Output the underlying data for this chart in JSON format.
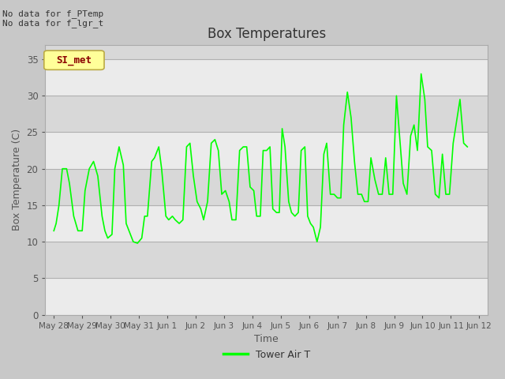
{
  "title": "Box Temperatures",
  "ylabel": "Box Temperature (C)",
  "xlabel": "Time",
  "ylim": [
    0,
    37
  ],
  "line_color": "#00ff00",
  "legend_label": "Tower Air T",
  "no_data_line1": "No data for f_PTemp",
  "no_data_line2": "No data for f_lgr_t",
  "si_met_label": "SI_met",
  "xtick_labels": [
    "May 28",
    "May 29",
    "May 30",
    "May 31",
    "Jun 1",
    "Jun 2",
    "Jun 3",
    "Jun 4",
    "Jun 5",
    "Jun 6",
    "Jun 7",
    "Jun 8",
    "Jun 9",
    "Jun 10",
    "Jun 11",
    "Jun 12"
  ],
  "ytick_vals": [
    0,
    5,
    10,
    15,
    20,
    25,
    30,
    35
  ],
  "x_data": [
    0.0,
    0.08,
    0.18,
    0.3,
    0.45,
    0.55,
    0.7,
    0.85,
    1.0,
    1.1,
    1.25,
    1.4,
    1.55,
    1.7,
    1.8,
    1.9,
    2.05,
    2.15,
    2.3,
    2.45,
    2.55,
    2.7,
    2.8,
    2.95,
    3.1,
    3.2,
    3.3,
    3.45,
    3.55,
    3.7,
    3.8,
    3.95,
    4.05,
    4.18,
    4.28,
    4.42,
    4.55,
    4.68,
    4.8,
    4.92,
    5.05,
    5.18,
    5.28,
    5.42,
    5.55,
    5.68,
    5.8,
    5.92,
    6.05,
    6.18,
    6.28,
    6.42,
    6.55,
    6.68,
    6.8,
    6.92,
    7.05,
    7.15,
    7.28,
    7.38,
    7.5,
    7.62,
    7.72,
    7.85,
    7.95,
    8.05,
    8.15,
    8.28,
    8.38,
    8.5,
    8.62,
    8.72,
    8.85,
    8.95,
    9.05,
    9.15,
    9.28,
    9.4,
    9.52,
    9.62,
    9.75,
    9.88,
    10.0,
    10.12,
    10.22,
    10.35,
    10.48,
    10.6,
    10.72,
    10.85,
    10.95,
    11.08,
    11.18,
    11.32,
    11.45,
    11.58,
    11.7,
    11.82,
    11.95,
    12.08,
    12.18,
    12.32,
    12.45,
    12.58,
    12.7,
    12.82,
    12.95,
    13.08,
    13.18,
    13.32,
    13.45,
    13.58,
    13.7,
    13.82,
    13.95,
    14.08,
    14.18,
    14.32,
    14.45,
    14.58
  ],
  "y_data": [
    11.5,
    12.5,
    15.0,
    20.0,
    20.0,
    18.0,
    13.5,
    11.5,
    11.5,
    17.0,
    20.0,
    21.0,
    19.0,
    13.5,
    11.5,
    10.5,
    11.0,
    20.0,
    23.0,
    20.5,
    12.5,
    11.0,
    10.0,
    9.8,
    10.5,
    13.5,
    13.5,
    21.0,
    21.5,
    23.0,
    20.0,
    13.5,
    13.0,
    13.5,
    13.0,
    12.5,
    13.0,
    23.0,
    23.5,
    19.0,
    15.5,
    14.5,
    13.0,
    15.5,
    23.5,
    24.0,
    22.5,
    16.5,
    17.0,
    15.5,
    13.0,
    13.0,
    22.5,
    23.0,
    23.0,
    17.5,
    17.0,
    13.5,
    13.5,
    22.5,
    22.5,
    23.0,
    14.5,
    14.0,
    14.0,
    25.5,
    23.0,
    15.5,
    14.0,
    13.5,
    14.0,
    22.5,
    23.0,
    13.5,
    12.5,
    12.0,
    10.0,
    12.0,
    22.0,
    23.5,
    16.5,
    16.5,
    16.0,
    16.0,
    26.0,
    30.5,
    27.0,
    21.0,
    16.5,
    16.5,
    15.5,
    15.5,
    21.5,
    18.5,
    16.5,
    16.5,
    21.5,
    16.5,
    16.5,
    30.0,
    25.0,
    18.0,
    16.5,
    24.5,
    26.0,
    22.5,
    33.0,
    29.5,
    23.0,
    22.5,
    16.5,
    16.0,
    22.0,
    16.5,
    16.5,
    23.5,
    26.0,
    29.5,
    23.5,
    23.0
  ]
}
